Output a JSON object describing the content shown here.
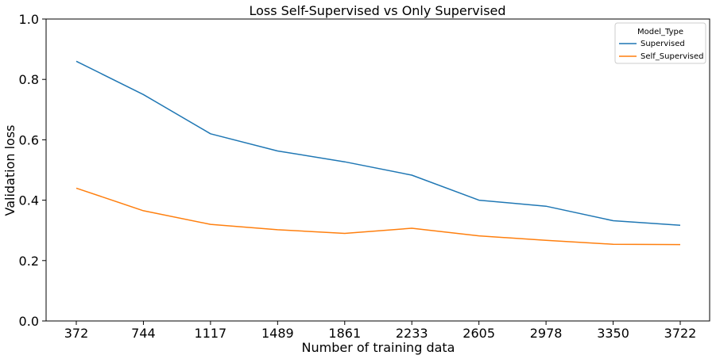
{
  "chart_data": {
    "type": "line",
    "title": "Loss Self-Supervised vs Only Supervised",
    "xlabel": "Number of training data",
    "ylabel": "Validation loss",
    "categories": [
      "372",
      "744",
      "1117",
      "1489",
      "1861",
      "2233",
      "2605",
      "2978",
      "3350",
      "3722"
    ],
    "ylim": [
      0.0,
      1.0
    ],
    "yticks": [
      "0.0",
      "0.2",
      "0.4",
      "0.6",
      "0.8",
      "1.0"
    ],
    "grid": false,
    "legend": {
      "title": "Model_Type",
      "placement": "top-right"
    },
    "series": [
      {
        "name": "Supervised",
        "color": "#1f77b4",
        "values": [
          0.86,
          0.75,
          0.62,
          0.563,
          0.527,
          0.483,
          0.4,
          0.38,
          0.332,
          0.317
        ]
      },
      {
        "name": "Self_Supervised",
        "color": "#ff7f0e",
        "values": [
          0.44,
          0.365,
          0.32,
          0.302,
          0.29,
          0.307,
          0.282,
          0.267,
          0.254,
          0.253
        ]
      }
    ]
  }
}
